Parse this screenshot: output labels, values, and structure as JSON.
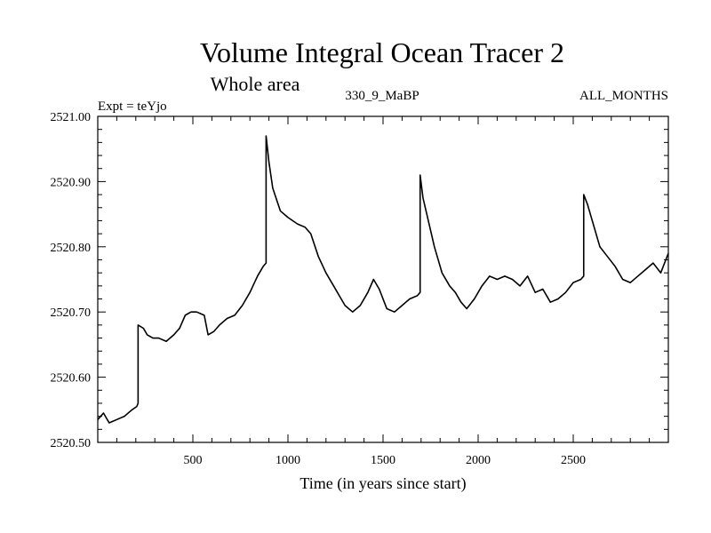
{
  "chart_data": {
    "type": "line",
    "title": "Volume Integral Ocean Tracer 2",
    "subtitle": "Whole area",
    "annotations": {
      "experiment": "Expt = teYjo",
      "run": "330_9_MaBP",
      "months": "ALL_MONTHS"
    },
    "xlabel": "Time (in years since start)",
    "ylabel": "",
    "xlim": [
      0,
      3000
    ],
    "ylim": [
      2520.5,
      2521.0
    ],
    "xticks": [
      500,
      1000,
      1500,
      2000,
      2500
    ],
    "xtick_labels": [
      "500",
      "1000",
      "1500",
      "2000",
      "2500"
    ],
    "yticks": [
      2520.5,
      2520.6,
      2520.7,
      2520.8,
      2520.9,
      2521.0
    ],
    "ytick_labels": [
      "2520.50",
      "2520.60",
      "2520.70",
      "2520.80",
      "2520.90",
      "2521.00"
    ],
    "grid": false,
    "series": [
      {
        "name": "Volume Integral Ocean Tracer 2",
        "color": "#000000",
        "x": [
          0,
          30,
          60,
          100,
          140,
          180,
          205,
          212,
          212,
          240,
          260,
          290,
          320,
          360,
          400,
          430,
          460,
          490,
          520,
          560,
          580,
          610,
          640,
          680,
          720,
          760,
          800,
          840,
          870,
          885,
          885,
          900,
          920,
          960,
          1000,
          1050,
          1090,
          1120,
          1160,
          1200,
          1240,
          1270,
          1300,
          1340,
          1380,
          1420,
          1450,
          1480,
          1520,
          1560,
          1600,
          1640,
          1680,
          1695,
          1695,
          1710,
          1730,
          1770,
          1810,
          1850,
          1880,
          1910,
          1940,
          1980,
          2020,
          2060,
          2100,
          2140,
          2180,
          2220,
          2260,
          2300,
          2340,
          2380,
          2420,
          2460,
          2500,
          2540,
          2555,
          2555,
          2575,
          2600,
          2640,
          2680,
          2720,
          2760,
          2800,
          2840,
          2880,
          2920,
          2960,
          3000
        ],
        "y": [
          2520.535,
          2520.545,
          2520.53,
          2520.535,
          2520.54,
          2520.55,
          2520.555,
          2520.56,
          2520.68,
          2520.675,
          2520.665,
          2520.66,
          2520.66,
          2520.655,
          2520.665,
          2520.675,
          2520.695,
          2520.7,
          2520.7,
          2520.695,
          2520.665,
          2520.67,
          2520.68,
          2520.69,
          2520.695,
          2520.71,
          2520.73,
          2520.755,
          2520.77,
          2520.775,
          2520.97,
          2520.93,
          2520.89,
          2520.855,
          2520.845,
          2520.835,
          2520.83,
          2520.82,
          2520.785,
          2520.76,
          2520.74,
          2520.725,
          2520.71,
          2520.7,
          2520.71,
          2520.73,
          2520.75,
          2520.735,
          2520.705,
          2520.7,
          2520.71,
          2520.72,
          2520.725,
          2520.73,
          2520.91,
          2520.875,
          2520.85,
          2520.8,
          2520.76,
          2520.74,
          2520.73,
          2520.715,
          2520.705,
          2520.72,
          2520.74,
          2520.755,
          2520.75,
          2520.755,
          2520.75,
          2520.74,
          2520.755,
          2520.73,
          2520.735,
          2520.715,
          2520.72,
          2520.73,
          2520.745,
          2520.75,
          2520.755,
          2520.88,
          2520.865,
          2520.84,
          2520.8,
          2520.785,
          2520.77,
          2520.75,
          2520.745,
          2520.755,
          2520.765,
          2520.775,
          2520.76,
          2520.79
        ]
      }
    ]
  }
}
